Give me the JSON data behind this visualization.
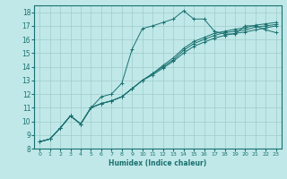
{
  "xlabel": "Humidex (Indice chaleur)",
  "ylabel": "",
  "xlim": [
    -0.5,
    23.5
  ],
  "ylim": [
    8,
    18.5
  ],
  "xticks": [
    0,
    1,
    2,
    3,
    4,
    5,
    6,
    7,
    8,
    9,
    10,
    11,
    12,
    13,
    14,
    15,
    16,
    17,
    18,
    19,
    20,
    21,
    22,
    23
  ],
  "yticks": [
    8,
    9,
    10,
    11,
    12,
    13,
    14,
    15,
    16,
    17,
    18
  ],
  "bg_color": "#c0e8e8",
  "grid_color": "#a0cccc",
  "line_color": "#1a7070",
  "lines": [
    [
      8.5,
      8.7,
      9.5,
      10.4,
      9.8,
      11.0,
      11.8,
      12.0,
      12.8,
      15.3,
      16.8,
      17.0,
      17.25,
      17.5,
      18.1,
      17.5,
      17.5,
      16.6,
      16.4,
      16.4,
      17.0,
      17.0,
      16.7,
      16.5
    ],
    [
      8.5,
      8.7,
      9.5,
      10.4,
      9.8,
      11.0,
      11.3,
      11.5,
      11.8,
      12.4,
      13.0,
      13.5,
      14.0,
      14.5,
      15.2,
      15.7,
      16.0,
      16.3,
      16.5,
      16.6,
      16.7,
      16.9,
      17.0,
      17.1
    ],
    [
      8.5,
      8.7,
      9.5,
      10.4,
      9.8,
      11.0,
      11.3,
      11.5,
      11.8,
      12.4,
      13.0,
      13.5,
      14.1,
      14.65,
      15.35,
      15.85,
      16.15,
      16.45,
      16.6,
      16.75,
      16.85,
      17.05,
      17.15,
      17.25
    ],
    [
      8.5,
      8.7,
      9.5,
      10.4,
      9.8,
      11.0,
      11.3,
      11.5,
      11.8,
      12.4,
      13.0,
      13.4,
      13.9,
      14.4,
      15.0,
      15.5,
      15.8,
      16.1,
      16.3,
      16.45,
      16.55,
      16.7,
      16.85,
      17.0
    ]
  ],
  "marker": "+"
}
